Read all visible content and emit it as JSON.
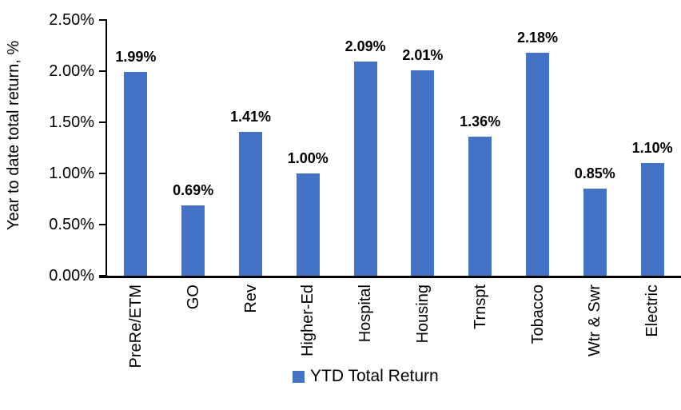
{
  "chart_data": {
    "type": "bar",
    "title": "",
    "xlabel": "",
    "ylabel": "Year to date total return, %",
    "categories": [
      "PreRe/ETM",
      "GO",
      "Rev",
      "Higher-Ed",
      "Hospital",
      "Housing",
      "Trnspt",
      "Tobacco",
      "Wtr & Swr",
      "Electric"
    ],
    "values": [
      1.99,
      0.69,
      1.41,
      1.0,
      2.09,
      2.01,
      1.36,
      2.18,
      0.85,
      1.1
    ],
    "value_labels": [
      "1.99%",
      "0.69%",
      "1.41%",
      "1.00%",
      "2.09%",
      "2.01%",
      "1.36%",
      "2.18%",
      "0.85%",
      "1.10%"
    ],
    "ylim": [
      0,
      2.5
    ],
    "ytick_labels": [
      "0.00%",
      "0.50%",
      "1.00%",
      "1.50%",
      "2.00%",
      "2.50%"
    ],
    "ytick_values": [
      0,
      0.5,
      1.0,
      1.5,
      2.0,
      2.5
    ],
    "grid": false,
    "bar_color": "#4472C4",
    "axis_color": "#000000",
    "text_color": "#000000",
    "legend": {
      "position": "bottom",
      "entries": [
        {
          "label": "YTD Total Return",
          "color": "#4472C4"
        }
      ]
    }
  }
}
